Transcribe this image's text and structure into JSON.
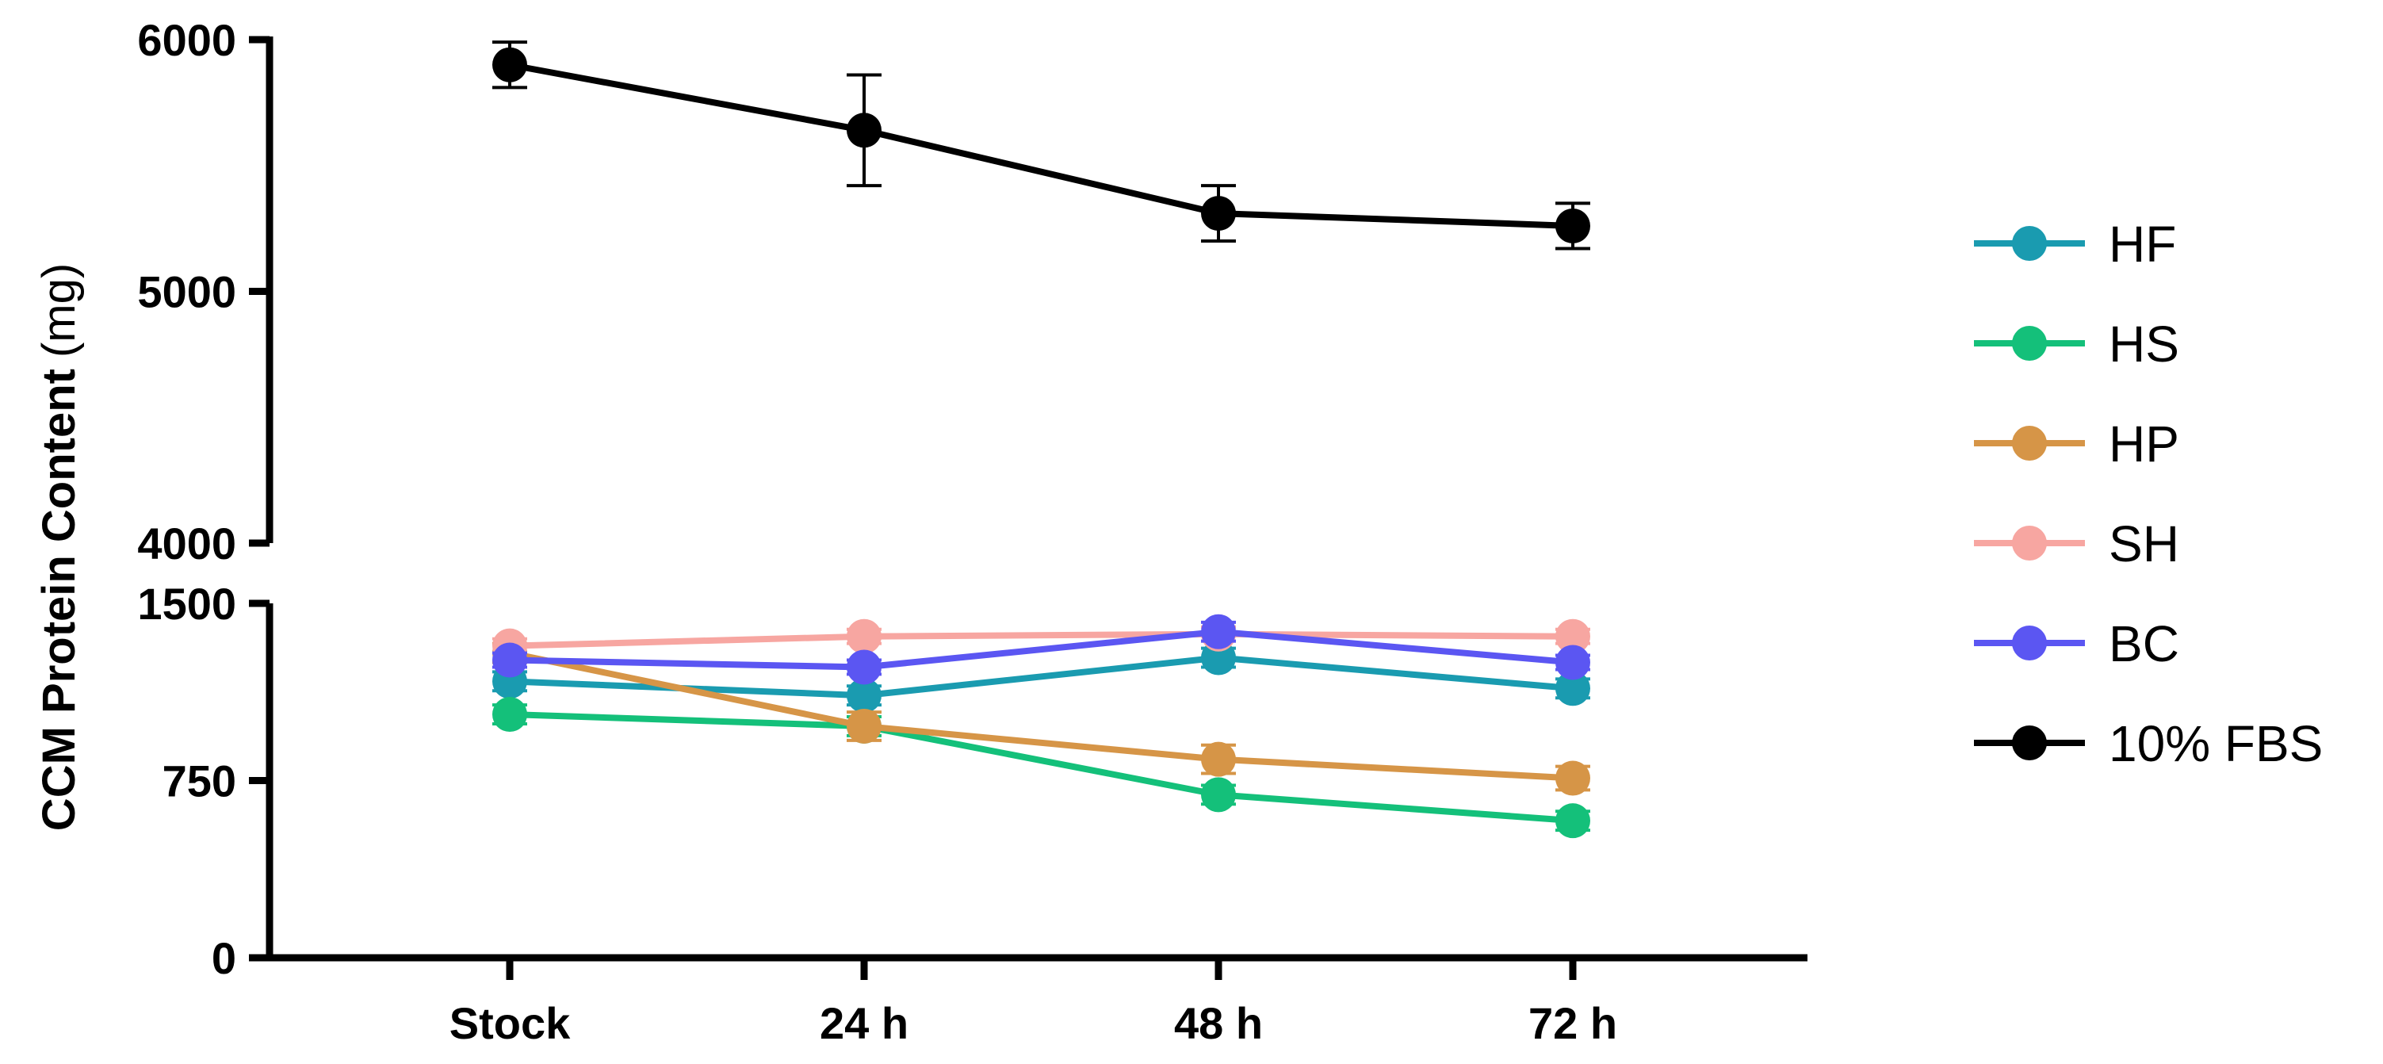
{
  "chart_data": {
    "type": "line",
    "title": "",
    "xlabel": "",
    "ylabel": "CCM Protein Content",
    "ylabel_unit": "(mg)",
    "categories": [
      "Stock",
      "24 h",
      "48 h",
      "72 h"
    ],
    "y_axis_break": true,
    "ylim_lower": [
      0,
      1500
    ],
    "ylim_upper": [
      4000,
      6000
    ],
    "yticks_lower": [
      "0",
      "750",
      "1500"
    ],
    "yticks_upper": [
      "4000",
      "5000",
      "6000"
    ],
    "legend_position": "right",
    "series": [
      {
        "name": "HF",
        "color": "#1a9bb0",
        "values": [
          1170,
          1110,
          1270,
          1140
        ],
        "errors": [
          40,
          40,
          40,
          40
        ]
      },
      {
        "name": "HS",
        "color": "#14c07a",
        "values": [
          1030,
          980,
          690,
          580
        ],
        "errors": [
          40,
          40,
          40,
          40
        ]
      },
      {
        "name": "HP",
        "color": "#d69547",
        "values": [
          1290,
          980,
          840,
          760
        ],
        "errors": [
          40,
          60,
          60,
          50
        ]
      },
      {
        "name": "SH",
        "color": "#f7a6a1",
        "values": [
          1320,
          1360,
          1370,
          1360
        ],
        "errors": [
          30,
          30,
          30,
          30
        ]
      },
      {
        "name": "BC",
        "color": "#5b56f2",
        "values": [
          1260,
          1230,
          1380,
          1250
        ],
        "errors": [
          30,
          30,
          40,
          30
        ]
      },
      {
        "name": "10% FBS",
        "color": "#000000",
        "values": [
          5900,
          5640,
          5310,
          5260
        ],
        "errors": [
          90,
          220,
          110,
          90
        ]
      }
    ]
  }
}
